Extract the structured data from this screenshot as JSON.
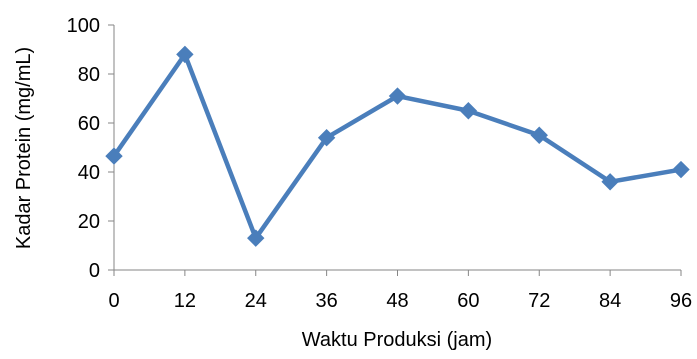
{
  "chart_data": {
    "type": "line",
    "title": "",
    "xlabel": "Waktu Produksi (jam)",
    "ylabel": "Kadar Protein (mg/mL)",
    "x": [
      0,
      12,
      24,
      36,
      48,
      60,
      72,
      84,
      96
    ],
    "x_tick_labels": [
      "0",
      "12",
      "24",
      "36",
      "48",
      "60",
      "72",
      "84",
      "96"
    ],
    "y_tick_labels": [
      "0",
      "20",
      "40",
      "60",
      "80",
      "100"
    ],
    "y_ticks": [
      0,
      20,
      40,
      60,
      80,
      100
    ],
    "ylim": [
      0,
      100
    ],
    "xlim": [
      0,
      96
    ],
    "grid": false,
    "legend": "none",
    "marker": "diamond",
    "series": [
      {
        "values": [
          46.5,
          88,
          13,
          54,
          71,
          65,
          55,
          36,
          41
        ],
        "color": "#4a7ebb"
      }
    ]
  }
}
